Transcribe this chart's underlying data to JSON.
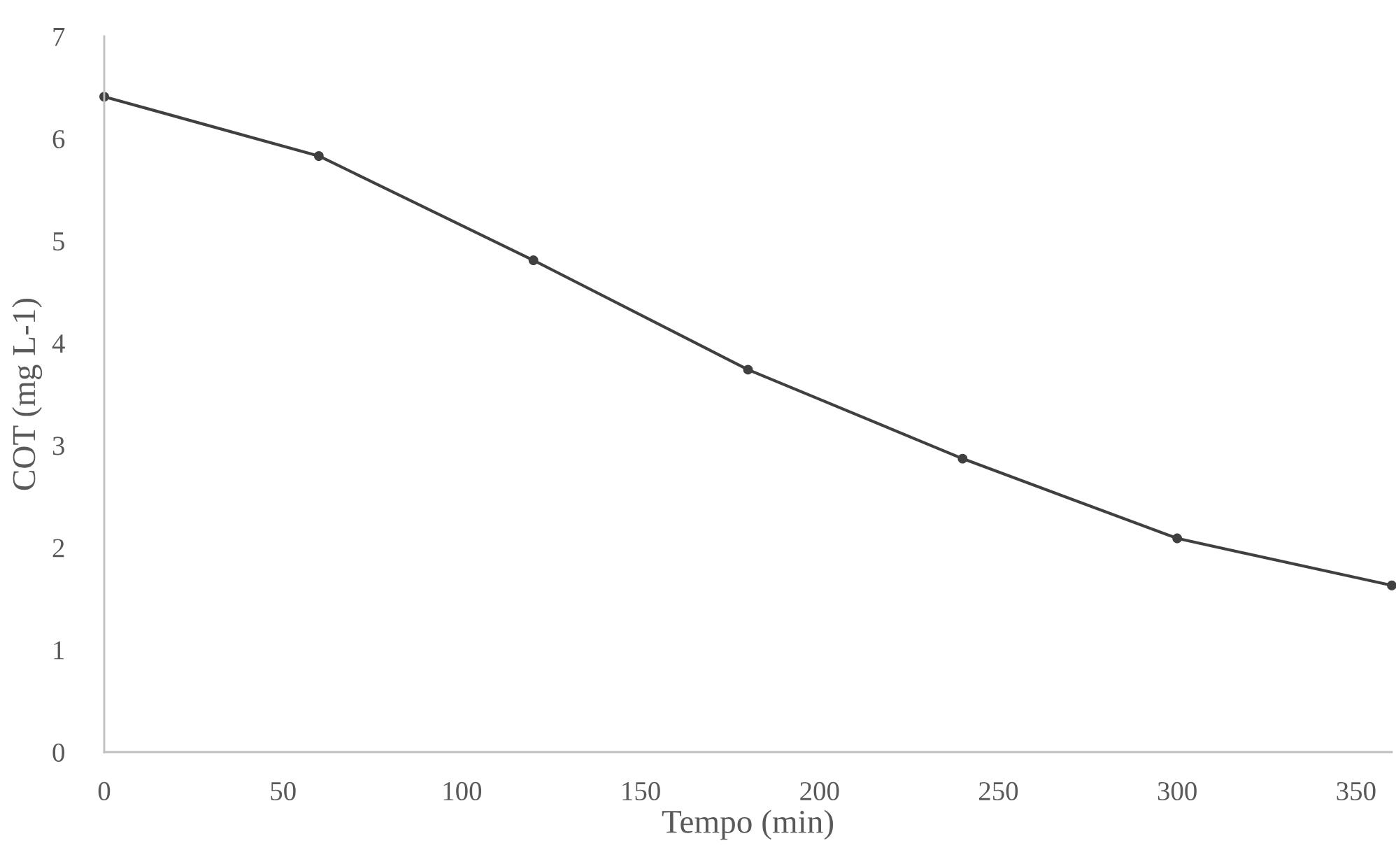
{
  "chart_data": {
    "type": "line",
    "xlabel": "Tempo (min)",
    "ylabel": "COT (mg L-1)",
    "x": [
      0,
      60,
      120,
      180,
      240,
      300,
      360
    ],
    "series": [
      {
        "color": "#404040",
        "values": [
          6.41,
          5.83,
          4.81,
          3.74,
          2.87,
          2.09,
          1.63
        ]
      }
    ],
    "xlim": [
      0,
      360
    ],
    "xticks": [
      0,
      50,
      100,
      150,
      200,
      250,
      300,
      350
    ],
    "ylim": [
      0,
      7
    ],
    "yticks": [
      0,
      1,
      2,
      3,
      4,
      5,
      6,
      7
    ],
    "marker": "circle",
    "line_style": "solid",
    "grid": false
  }
}
